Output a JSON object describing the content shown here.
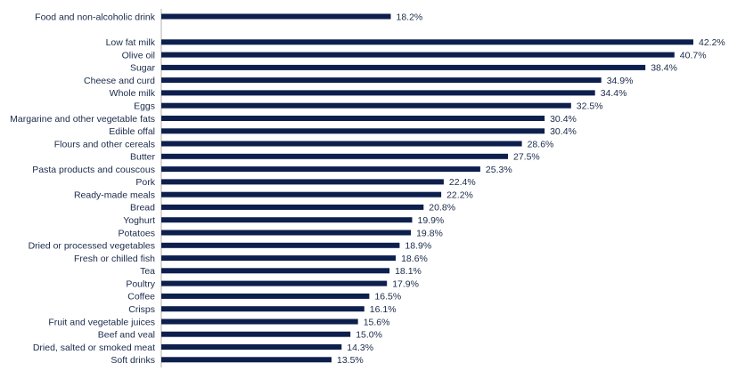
{
  "chart_data": {
    "type": "bar",
    "orientation": "horizontal",
    "title": "",
    "xlabel": "",
    "ylabel": "",
    "xlim": [
      0,
      42.2
    ],
    "grid": false,
    "legend": "none",
    "bar_color": "#0d1f4d",
    "axis_color": "#b0b0b0",
    "value_suffix": "%",
    "summary": {
      "category": "Food and non-alcoholic drink",
      "value": 18.2,
      "label": "18.2%"
    },
    "categories": [
      "Low fat milk",
      "Olive oil",
      "Sugar",
      "Cheese and curd",
      "Whole milk",
      "Eggs",
      "Margarine and other vegetable fats",
      "Edible offal",
      "Flours and other cereals",
      "Butter",
      "Pasta products and couscous",
      "Pork",
      "Ready-made meals",
      "Bread",
      "Yoghurt",
      "Potatoes",
      "Dried or processed vegetables",
      "Fresh or chilled fish",
      "Tea",
      "Poultry",
      "Coffee",
      "Crisps",
      "Fruit and vegetable juices",
      "Beef and veal",
      "Dried, salted or smoked meat",
      "Soft drinks"
    ],
    "values": [
      42.2,
      40.7,
      38.4,
      34.9,
      34.4,
      32.5,
      30.4,
      30.4,
      28.6,
      27.5,
      25.3,
      22.4,
      22.2,
      20.8,
      19.9,
      19.8,
      18.9,
      18.6,
      18.1,
      17.9,
      16.5,
      16.1,
      15.6,
      15.0,
      14.3,
      13.5
    ],
    "labels": [
      "42.2%",
      "40.7%",
      "38.4%",
      "34.9%",
      "34.4%",
      "32.5%",
      "30.4%",
      "30.4%",
      "28.6%",
      "27.5%",
      "25.3%",
      "22.4%",
      "22.2%",
      "20.8%",
      "19.9%",
      "19.8%",
      "18.9%",
      "18.6%",
      "18.1%",
      "17.9%",
      "16.5%",
      "16.1%",
      "15.6%",
      "15.0%",
      "14.3%",
      "13.5%"
    ]
  }
}
